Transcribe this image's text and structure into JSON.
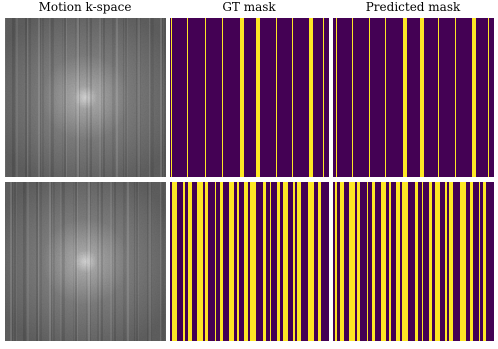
{
  "panels": {
    "titles": [
      "Motion k-space",
      "GT mask",
      "Predicted mask"
    ]
  }
}
